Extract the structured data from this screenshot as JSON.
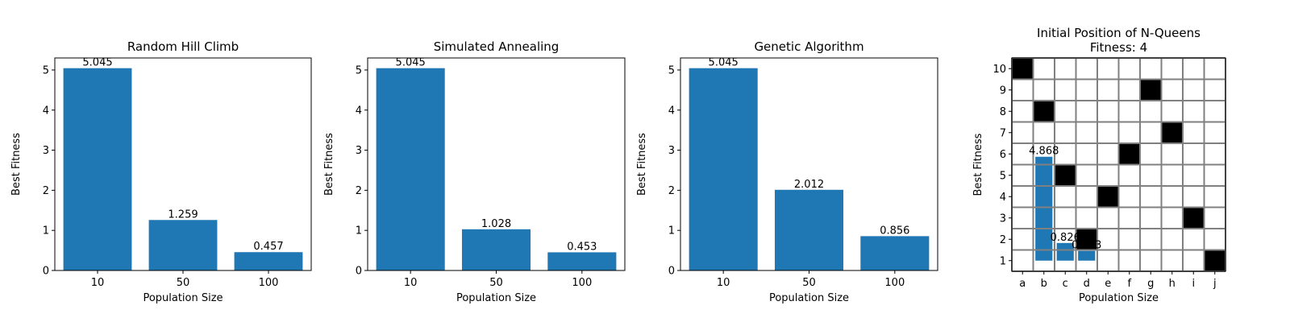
{
  "chart_data": [
    {
      "type": "bar",
      "title": "Random Hill Climb",
      "xlabel": "Population Size",
      "ylabel": "Best Fitness",
      "categories": [
        "10",
        "50",
        "100"
      ],
      "values": [
        5.045,
        1.259,
        0.457
      ],
      "value_labels": [
        "5.045",
        "1.259",
        "0.457"
      ],
      "ylim": [
        0,
        5.3
      ],
      "yticks": [
        0,
        1,
        2,
        3,
        4,
        5
      ],
      "color": "#1f77b4"
    },
    {
      "type": "bar",
      "title": "Simulated Annealing",
      "xlabel": "Population Size",
      "ylabel": "Best Fitness",
      "categories": [
        "10",
        "50",
        "100"
      ],
      "values": [
        5.045,
        1.028,
        0.453
      ],
      "value_labels": [
        "5.045",
        "1.028",
        "0.453"
      ],
      "ylim": [
        0,
        5.3
      ],
      "yticks": [
        0,
        1,
        2,
        3,
        4,
        5
      ],
      "color": "#1f77b4"
    },
    {
      "type": "bar",
      "title": "Genetic Algorithm",
      "xlabel": "Population Size",
      "ylabel": "Best Fitness",
      "categories": [
        "10",
        "50",
        "100"
      ],
      "values": [
        5.045,
        2.012,
        0.856
      ],
      "value_labels": [
        "5.045",
        "2.012",
        "0.856"
      ],
      "ylim": [
        0,
        5.3
      ],
      "yticks": [
        0,
        1,
        2,
        3,
        4,
        5
      ],
      "color": "#1f77b4"
    },
    {
      "type": "heatmap",
      "title": "Initial Position of N-Queens",
      "subtitle": "Fitness: 4",
      "xlabel": "Population Size",
      "ylabel": "Best Fitness",
      "columns": [
        "a",
        "b",
        "c",
        "d",
        "e",
        "f",
        "g",
        "h",
        "i",
        "j"
      ],
      "rows": [
        "1",
        "2",
        "3",
        "4",
        "5",
        "6",
        "7",
        "8",
        "9",
        "10"
      ],
      "queens": [
        {
          "col": "a",
          "row": 10
        },
        {
          "col": "b",
          "row": 8
        },
        {
          "col": "c",
          "row": 5
        },
        {
          "col": "d",
          "row": 2
        },
        {
          "col": "e",
          "row": 4
        },
        {
          "col": "f",
          "row": 6
        },
        {
          "col": "g",
          "row": 9
        },
        {
          "col": "h",
          "row": 7
        },
        {
          "col": "i",
          "row": 3
        },
        {
          "col": "j",
          "row": 1
        }
      ],
      "overlay_bars": [
        {
          "col": "b",
          "value": 4.868,
          "label": "4.868"
        },
        {
          "col": "c",
          "value": 0.826,
          "label": "0.826"
        },
        {
          "col": "d",
          "value": 0.453,
          "label": "0.453"
        }
      ],
      "colors": {
        "queen": "#000000",
        "empty": "#ffffff",
        "grid": "#808080",
        "bar": "#1f77b4"
      }
    }
  ]
}
